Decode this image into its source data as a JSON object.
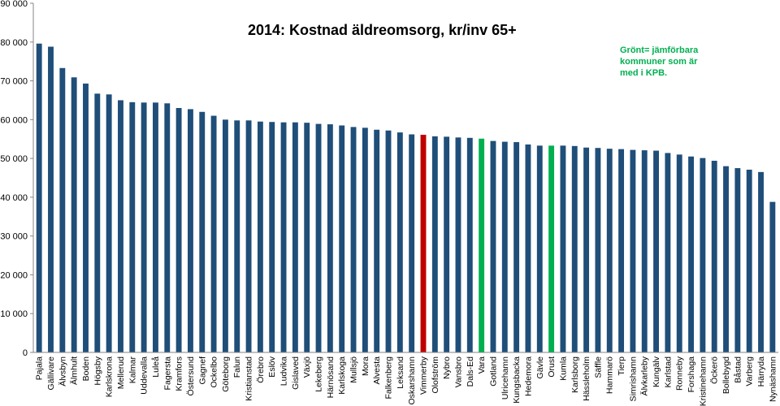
{
  "chart_data": {
    "type": "bar",
    "title": "2014: Kostnad äldreomsorg, kr/inv 65+",
    "annotation": "Grönt= jämförbara kommuner som är med i KPB.",
    "xlabel": "",
    "ylabel": "",
    "ylim": [
      0,
      90000
    ],
    "yticks": [
      "0",
      "10 000",
      "20 000",
      "30 000",
      "40 000",
      "50 000",
      "60 000",
      "70 000",
      "80 000",
      "90 000"
    ],
    "grid": false,
    "legend": "none",
    "colors": {
      "default": "#1F4E79",
      "highlight": "#C00000",
      "comparable": "#00B050",
      "annotation": "#00B050"
    },
    "highlighted": [
      "Vimmerby"
    ],
    "comparable": [
      "Vara",
      "Orust"
    ],
    "categories": [
      "Pajala",
      "Gällivare",
      "Älvsbyn",
      "Älmhult",
      "Boden",
      "Högsby",
      "Karlskrona",
      "Mellerud",
      "Kalmar",
      "Uddevalla",
      "Luleå",
      "Fagersta",
      "Kramfors",
      "Östersund",
      "Gagnef",
      "Ockelbo",
      "Göteborg",
      "Falun",
      "Kristianstad",
      "Örebro",
      "Eslöv",
      "Ludvika",
      "Gislaved",
      "Växjö",
      "Lekeberg",
      "Härnösand",
      "Karlskoga",
      "Mullsjö",
      "Mora",
      "Alvesta",
      "Falkenberg",
      "Leksand",
      "Oskarshamn",
      "Vimmerby",
      "Olofström",
      "Nybro",
      "Vansbro",
      "Dals-Ed",
      "Vara",
      "Gotland",
      "Ulricehamn",
      "Kungsbacka",
      "Hedemora",
      "Gävle",
      "Orust",
      "Kumla",
      "Karlsborg",
      "Hässleholm",
      "Säffle",
      "Hammarö",
      "Tierp",
      "Simrishamn",
      "Älvkarleby",
      "Kungälv",
      "Karlstad",
      "Ronneby",
      "Forshaga",
      "Kristinehamn",
      "Öckerö",
      "Bollebygd",
      "Båstad",
      "Varberg",
      "Härryda",
      "Nynäshamn"
    ],
    "values": [
      79600,
      78800,
      73300,
      70900,
      69300,
      66700,
      66500,
      65000,
      64500,
      64400,
      64400,
      64200,
      63000,
      62700,
      62000,
      61000,
      60000,
      59800,
      59800,
      59500,
      59400,
      59300,
      59300,
      59200,
      58900,
      58800,
      58500,
      58100,
      57900,
      57400,
      57200,
      56700,
      56200,
      56100,
      55700,
      55600,
      55400,
      55300,
      55100,
      54500,
      54300,
      54200,
      53600,
      53300,
      53300,
      53300,
      53200,
      52800,
      52700,
      52500,
      52400,
      52200,
      52100,
      52000,
      51400,
      51000,
      50500,
      50100,
      49400,
      48000,
      47500,
      47100,
      46500,
      38800
    ]
  }
}
